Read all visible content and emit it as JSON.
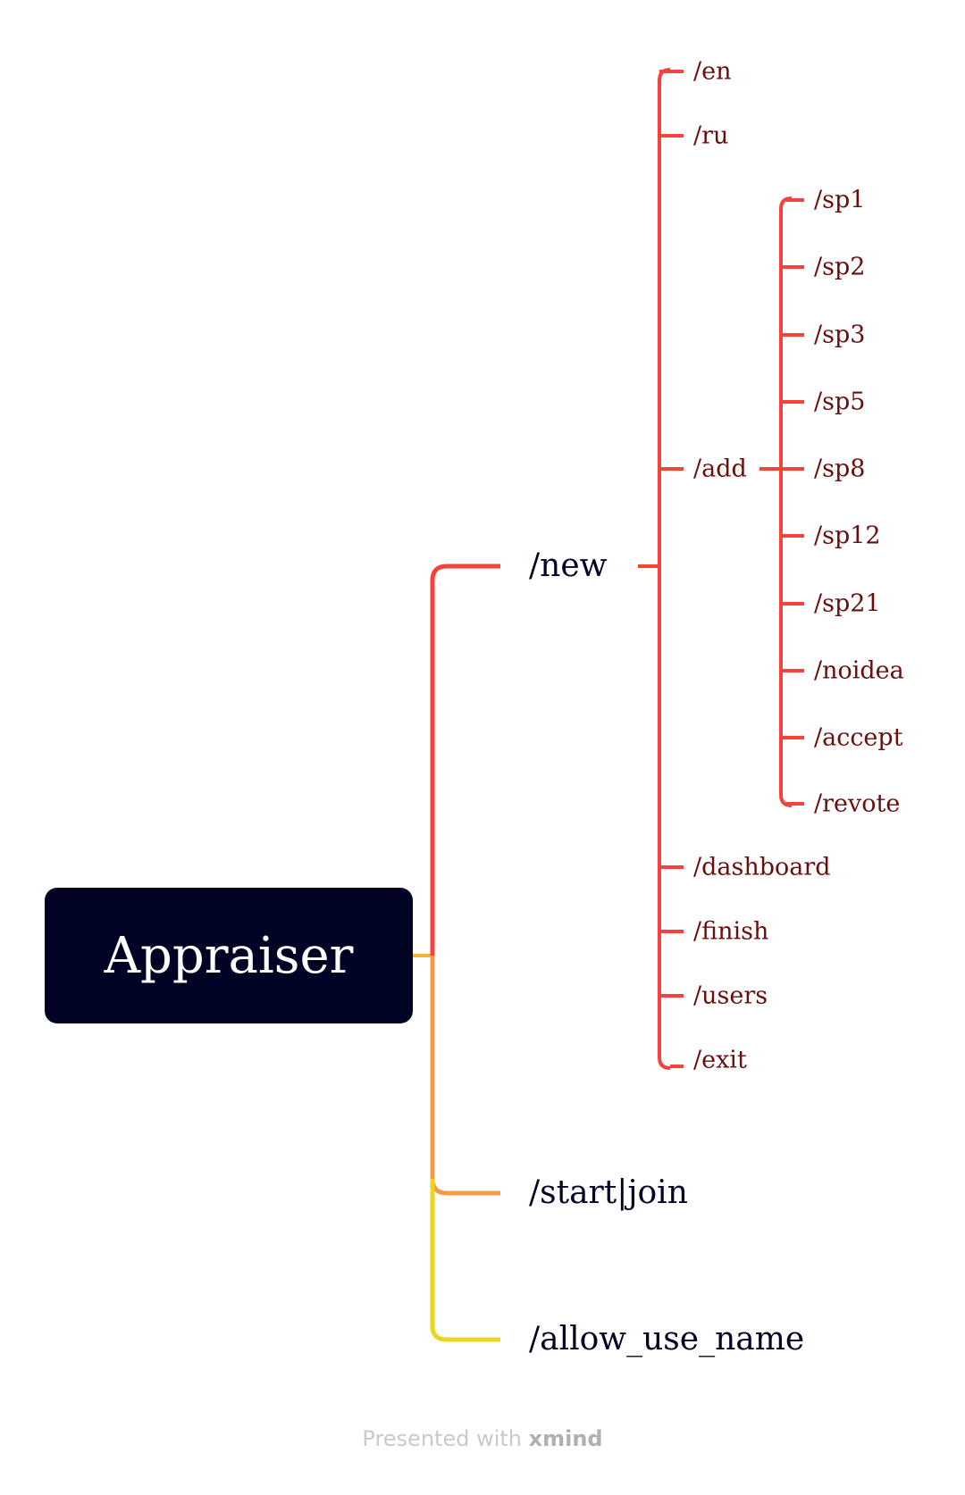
{
  "colors": {
    "root_bg": "#000323",
    "root_text": "#ffffff",
    "branch_red": "#f4433c",
    "branch_orange": "#f29a4a",
    "branch_yellow": "#eed321",
    "level1_text": "#000323",
    "leaf_text": "#6a0d0d",
    "footer_text": "#c9c9c9"
  },
  "root": {
    "label": "Appraiser"
  },
  "branches": {
    "new": {
      "label": "/new",
      "children": {
        "en": "/en",
        "ru": "/ru",
        "add": {
          "label": "/add",
          "children": [
            "/sp1",
            "/sp2",
            "/sp3",
            "/sp5",
            "/sp8",
            "/sp12",
            "/sp21",
            "/noidea",
            "/accept",
            "/revote"
          ]
        },
        "dashboard": "/dashboard",
        "finish": "/finish",
        "users": "/users",
        "exit": "/exit"
      }
    },
    "start_join": {
      "label": "/start|join"
    },
    "allow_use_name": {
      "label": "/allow_use_name"
    }
  },
  "footer": {
    "prefix": "Presented with",
    "brand": "xmind"
  }
}
